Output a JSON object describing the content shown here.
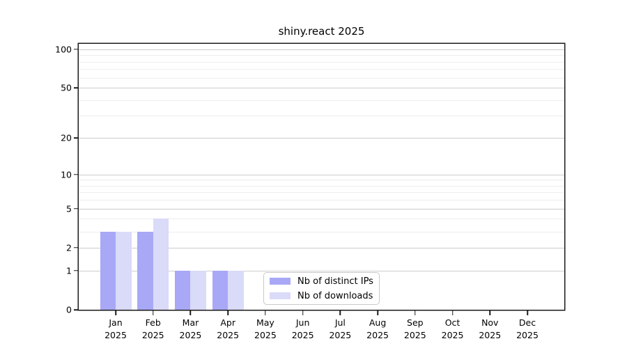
{
  "chart_data": {
    "type": "bar",
    "title": "shiny.react 2025",
    "categories": [
      {
        "month": "Jan",
        "year": "2025"
      },
      {
        "month": "Feb",
        "year": "2025"
      },
      {
        "month": "Mar",
        "year": "2025"
      },
      {
        "month": "Apr",
        "year": "2025"
      },
      {
        "month": "May",
        "year": "2025"
      },
      {
        "month": "Jun",
        "year": "2025"
      },
      {
        "month": "Jul",
        "year": "2025"
      },
      {
        "month": "Aug",
        "year": "2025"
      },
      {
        "month": "Sep",
        "year": "2025"
      },
      {
        "month": "Oct",
        "year": "2025"
      },
      {
        "month": "Nov",
        "year": "2025"
      },
      {
        "month": "Dec",
        "year": "2025"
      }
    ],
    "series": [
      {
        "name": "Nb of distinct IPs",
        "color": "#a8a8f6",
        "values": [
          3,
          3,
          1,
          1,
          0,
          0,
          0,
          0,
          0,
          0,
          0,
          0
        ]
      },
      {
        "name": "Nb of downloads",
        "color": "#dadaf9",
        "values": [
          3,
          4,
          1,
          1,
          0,
          0,
          0,
          0,
          0,
          0,
          0,
          0
        ]
      }
    ],
    "yscale": "log1p",
    "ylim": [
      0,
      110
    ],
    "y_major_ticks": [
      0,
      1,
      2,
      5,
      10,
      20,
      50,
      100
    ],
    "y_minor_gridlines": [
      3,
      4,
      6,
      7,
      8,
      9,
      30,
      40,
      60,
      70,
      80,
      90
    ],
    "xlabel": "",
    "ylabel": "",
    "grid": "on",
    "legend_position": "bottom-center-inside"
  }
}
